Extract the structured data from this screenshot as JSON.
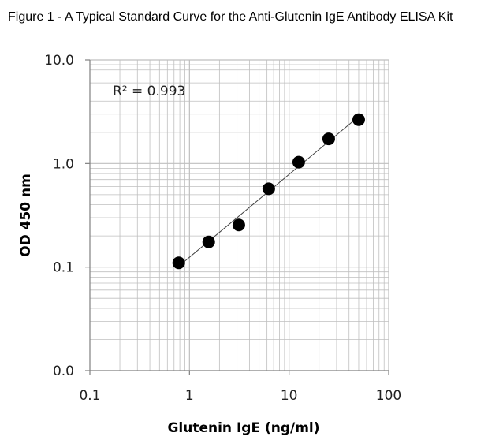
{
  "figure": {
    "title": "Figure 1 - A Typical Standard Curve for the Anti-Glutenin IgE Antibody ELISA Kit"
  },
  "chart_data": {
    "type": "scatter",
    "title": "Figure 1 - A Typical Standard Curve for the Anti-Glutenin IgE Antibody ELISA Kit",
    "xlabel": "Glutenin IgE (ng/ml)",
    "ylabel": "OD 450 nm",
    "x_scale": "log",
    "y_scale": "log",
    "xlim": [
      0.1,
      100
    ],
    "ylim": [
      0.01,
      10
    ],
    "x_ticks": [
      0.1,
      1,
      10,
      100
    ],
    "x_tick_labels": [
      "0.1",
      "1",
      "10",
      "100"
    ],
    "y_ticks": [
      0.01,
      0.1,
      1,
      10
    ],
    "y_tick_labels": [
      "0.0",
      "0.1",
      "1.0",
      "10.0"
    ],
    "grid": true,
    "trendline": "power",
    "annotation": "R² = 0.993",
    "series": [
      {
        "x": [
          0.78,
          1.56,
          3.13,
          6.25,
          12.5,
          25,
          50
        ],
        "y": [
          0.11,
          0.175,
          0.255,
          0.57,
          1.03,
          1.73,
          2.65
        ]
      }
    ],
    "colors": {
      "marker": "#000000",
      "trendline": "#404040",
      "grid": "#bfbfbf",
      "axis": "#808080"
    }
  }
}
